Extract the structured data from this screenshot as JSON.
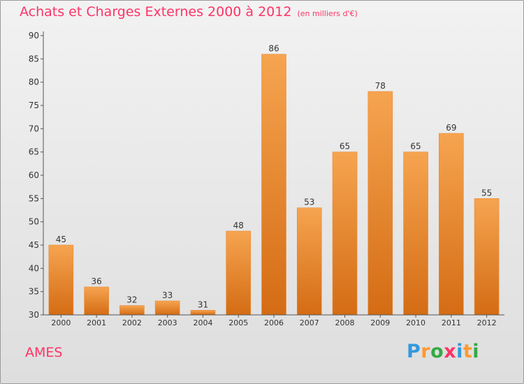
{
  "title": {
    "main": "Achats et Charges Externes 2000 à 2012",
    "unit": "(en milliers d'€)"
  },
  "place": "AMES",
  "brand": {
    "letters": [
      "P",
      "r",
      "o",
      "x",
      "i",
      "t",
      "i"
    ],
    "colors": [
      "#3399dd",
      "#ff9933",
      "#33aa44",
      "#ff3366",
      "#3399dd",
      "#ff9933",
      "#33aa44"
    ]
  },
  "colors": {
    "accent": "#ff3366",
    "bar_top": "#f6a450",
    "bar_bottom": "#d46c14"
  },
  "chart_data": {
    "type": "bar",
    "categories": [
      "2000",
      "2001",
      "2002",
      "2003",
      "2004",
      "2005",
      "2006",
      "2007",
      "2008",
      "2009",
      "2010",
      "2011",
      "2012"
    ],
    "values": [
      45,
      36,
      32,
      33,
      31,
      48,
      86,
      53,
      65,
      78,
      65,
      69,
      55
    ],
    "data_labels": [
      "45",
      "36",
      "32",
      "33",
      "31",
      "48",
      "86",
      "53",
      "65",
      "78",
      "65",
      "69",
      "55"
    ],
    "y_ticks": [
      30,
      35,
      40,
      45,
      50,
      55,
      60,
      65,
      70,
      75,
      80,
      85,
      90
    ],
    "ylim": [
      30,
      90
    ],
    "grid": false,
    "legend": "none"
  }
}
